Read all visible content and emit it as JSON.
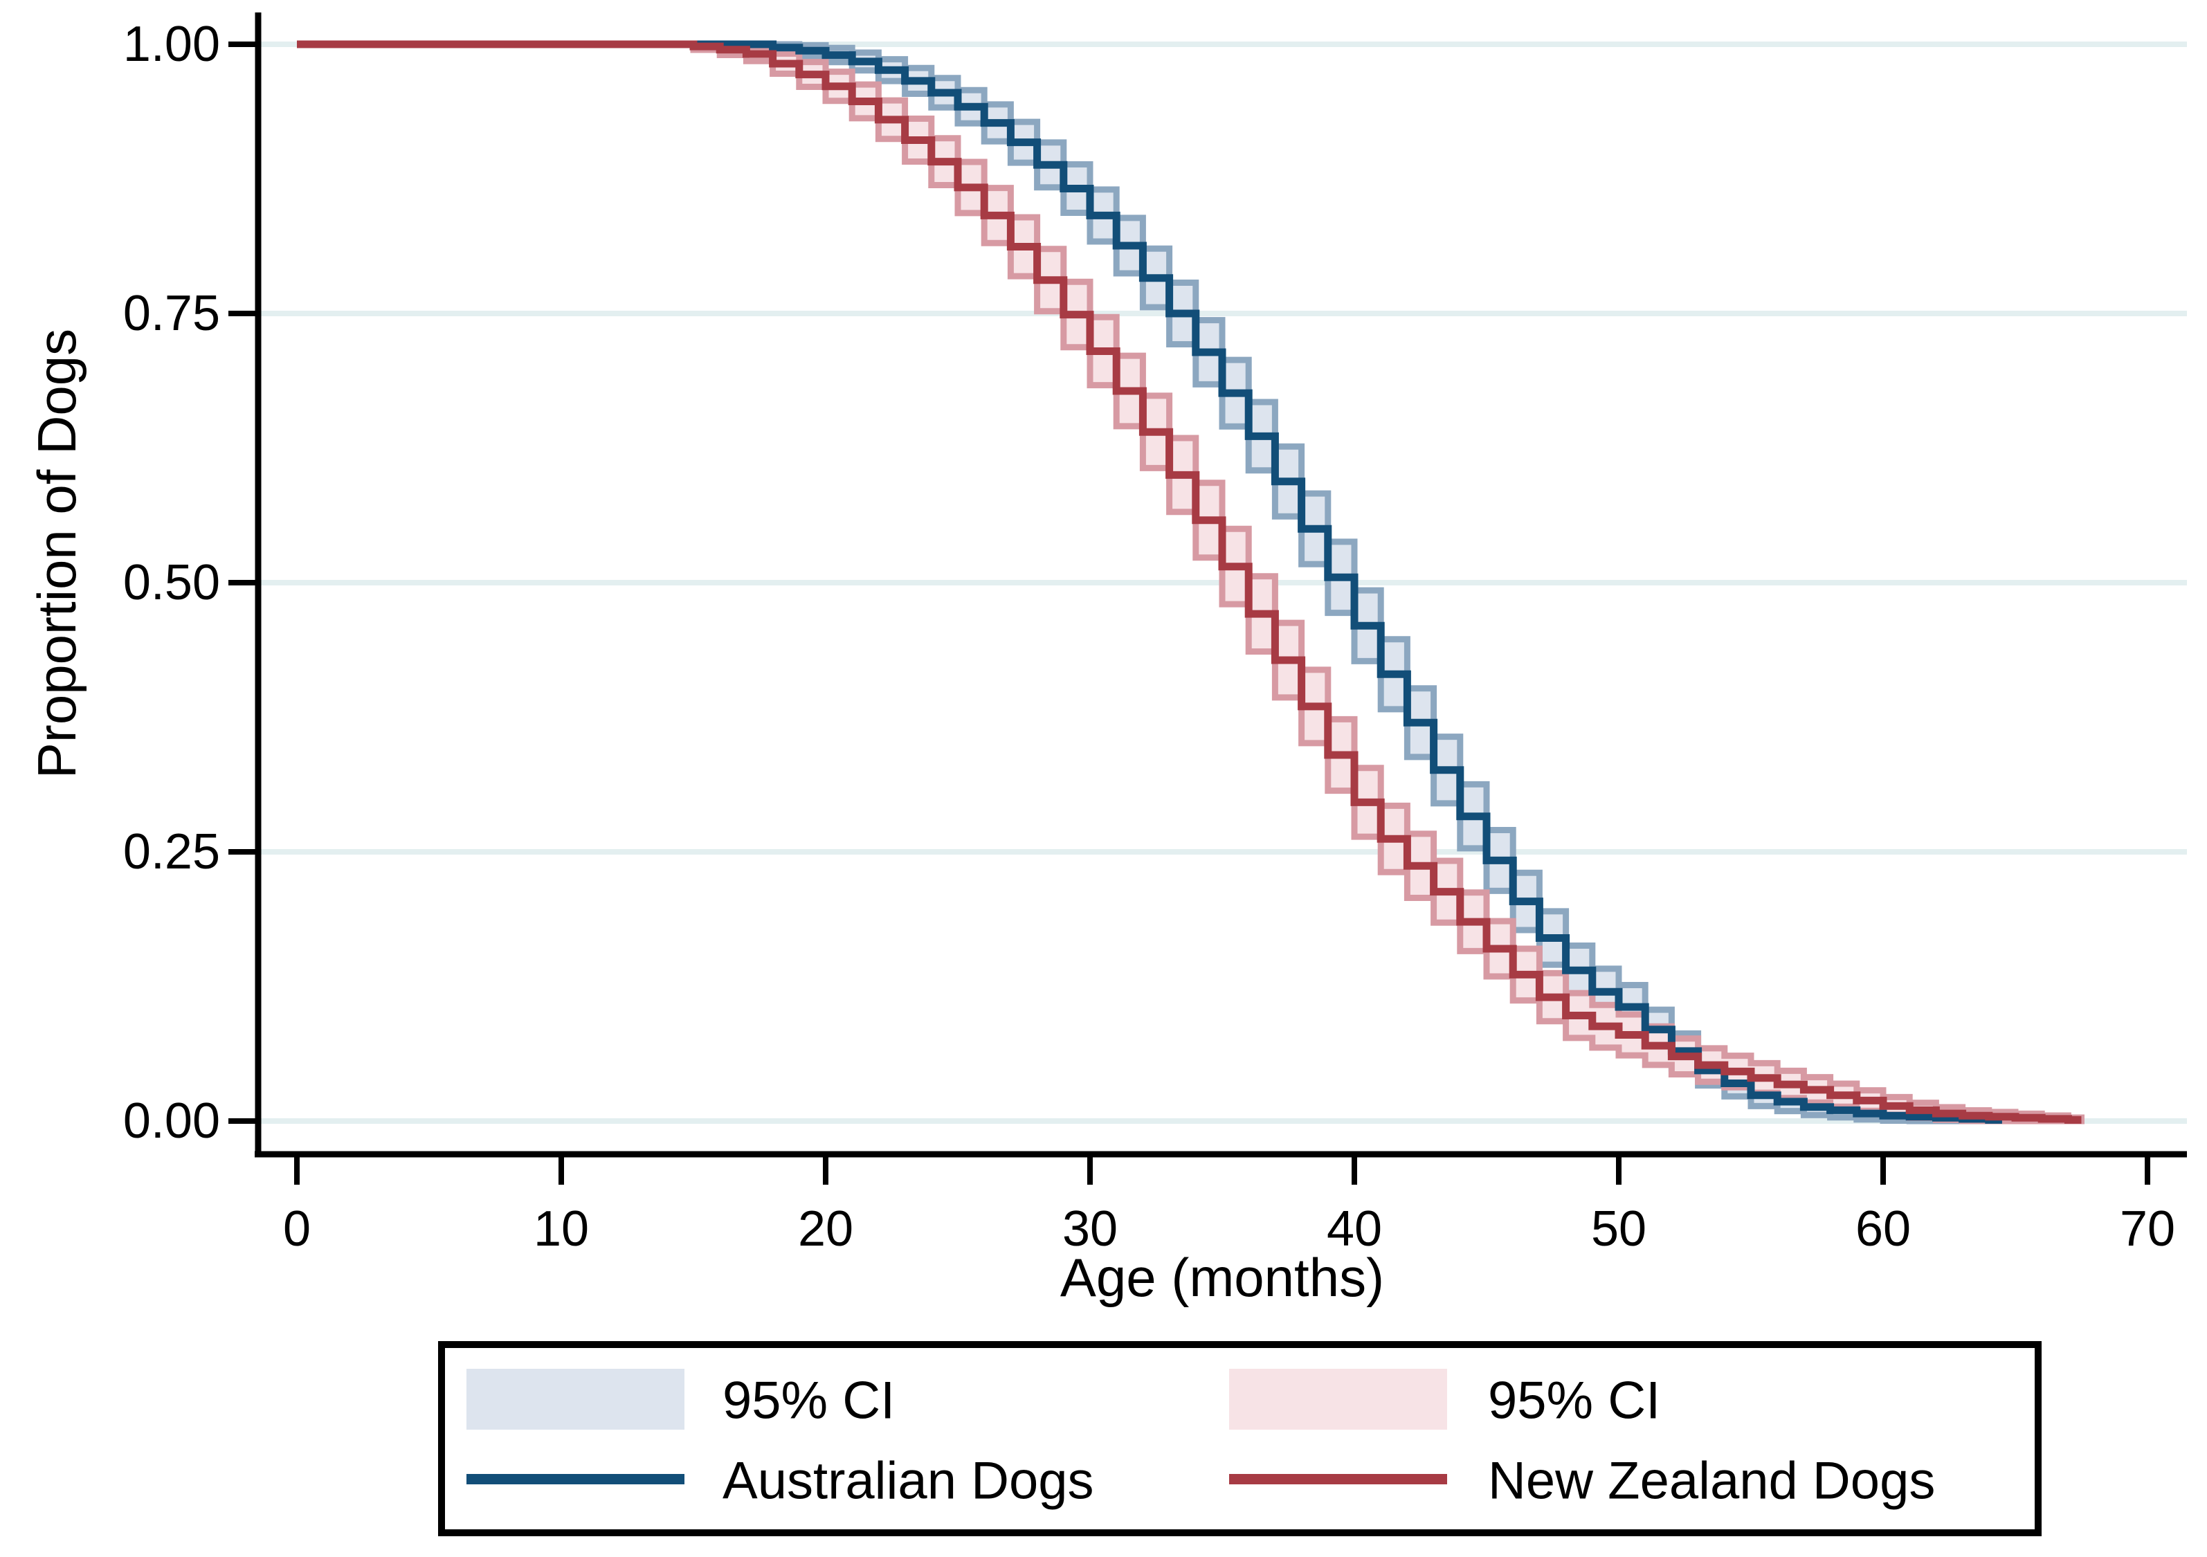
{
  "axes": {
    "x_label": "Age (months)",
    "y_label": "Proportion of Dogs",
    "x_ticks": [
      0,
      10,
      20,
      30,
      40,
      50,
      60,
      70
    ],
    "y_ticks": [
      "0.00",
      "0.25",
      "0.50",
      "0.75",
      "1.00"
    ],
    "x_range": [
      0,
      70
    ],
    "y_range": [
      0,
      1
    ]
  },
  "colors": {
    "background": "#ffffff",
    "axis": "#000000",
    "gridline": "#e3eff0",
    "aus_line": "#124e78",
    "aus_ci_edge": "#8ca7c0",
    "aus_ci_fill": "#dde4ee",
    "nz_line": "#a73b44",
    "nz_ci_edge": "#d79aa3",
    "nz_ci_fill": "#f7e3e6"
  },
  "chart_data": {
    "type": "line",
    "subtype": "kaplan-meier-step-with-ci",
    "title": "",
    "xlabel": "Age (months)",
    "ylabel": "Proportion of Dogs",
    "xlim": [
      0,
      70
    ],
    "ylim": [
      0,
      1
    ],
    "grid": "horizontal-only",
    "legend_position": "bottom-box",
    "series": [
      {
        "name": "Australian Dogs",
        "ci_label": "95% CI",
        "color": "#124e78",
        "ci_edge": "#8ca7c0",
        "ci_fill": "#dde4ee",
        "ci_halfwidth_factor": 0.066,
        "months": [
          0,
          1,
          2,
          3,
          4,
          5,
          6,
          7,
          8,
          9,
          10,
          11,
          12,
          13,
          14,
          15,
          16,
          17,
          18,
          19,
          20,
          21,
          22,
          23,
          24,
          25,
          26,
          27,
          28,
          29,
          30,
          31,
          32,
          33,
          34,
          35,
          36,
          37,
          38,
          39,
          40,
          41,
          42,
          43,
          44,
          45,
          46,
          47,
          48,
          49,
          50,
          51,
          52,
          53,
          54,
          55,
          56,
          57,
          58,
          59,
          60,
          61,
          62,
          63,
          64
        ],
        "values": [
          1.0,
          1.0,
          1.0,
          1.0,
          1.0,
          1.0,
          1.0,
          1.0,
          1.0,
          1.0,
          1.0,
          1.0,
          1.0,
          1.0,
          1.0,
          1.0,
          1.0,
          1.0,
          0.997,
          0.994,
          0.99,
          0.984,
          0.976,
          0.966,
          0.955,
          0.942,
          0.927,
          0.909,
          0.888,
          0.866,
          0.841,
          0.813,
          0.783,
          0.75,
          0.714,
          0.676,
          0.636,
          0.594,
          0.55,
          0.505,
          0.46,
          0.415,
          0.37,
          0.326,
          0.283,
          0.242,
          0.204,
          0.17,
          0.14,
          0.12,
          0.106,
          0.085,
          0.065,
          0.047,
          0.035,
          0.024,
          0.018,
          0.013,
          0.01,
          0.007,
          0.005,
          0.004,
          0.003,
          0.002,
          0.001
        ]
      },
      {
        "name": "New Zealand Dogs",
        "ci_label": "95% CI",
        "color": "#a73b44",
        "ci_edge": "#d79aa3",
        "ci_fill": "#f7e3e6",
        "ci_halfwidth_factor": 0.07,
        "months": [
          0,
          1,
          2,
          3,
          4,
          5,
          6,
          7,
          8,
          9,
          10,
          11,
          12,
          13,
          14,
          15,
          16,
          17,
          18,
          19,
          20,
          21,
          22,
          23,
          24,
          25,
          26,
          27,
          28,
          29,
          30,
          31,
          32,
          33,
          34,
          35,
          36,
          37,
          38,
          39,
          40,
          41,
          42,
          43,
          44,
          45,
          46,
          47,
          48,
          49,
          50,
          51,
          52,
          53,
          54,
          55,
          56,
          57,
          58,
          59,
          60,
          61,
          62,
          63,
          64,
          65,
          66,
          67
        ],
        "values": [
          1.0,
          1.0,
          1.0,
          1.0,
          1.0,
          1.0,
          1.0,
          1.0,
          1.0,
          1.0,
          1.0,
          1.0,
          1.0,
          1.0,
          1.0,
          0.998,
          0.995,
          0.991,
          0.982,
          0.972,
          0.961,
          0.947,
          0.93,
          0.911,
          0.891,
          0.867,
          0.841,
          0.812,
          0.781,
          0.749,
          0.715,
          0.678,
          0.64,
          0.6,
          0.558,
          0.515,
          0.471,
          0.428,
          0.385,
          0.34,
          0.296,
          0.262,
          0.237,
          0.213,
          0.185,
          0.16,
          0.136,
          0.115,
          0.098,
          0.088,
          0.08,
          0.07,
          0.06,
          0.052,
          0.046,
          0.04,
          0.034,
          0.029,
          0.024,
          0.019,
          0.014,
          0.01,
          0.007,
          0.005,
          0.004,
          0.003,
          0.002,
          0.001
        ]
      }
    ]
  }
}
